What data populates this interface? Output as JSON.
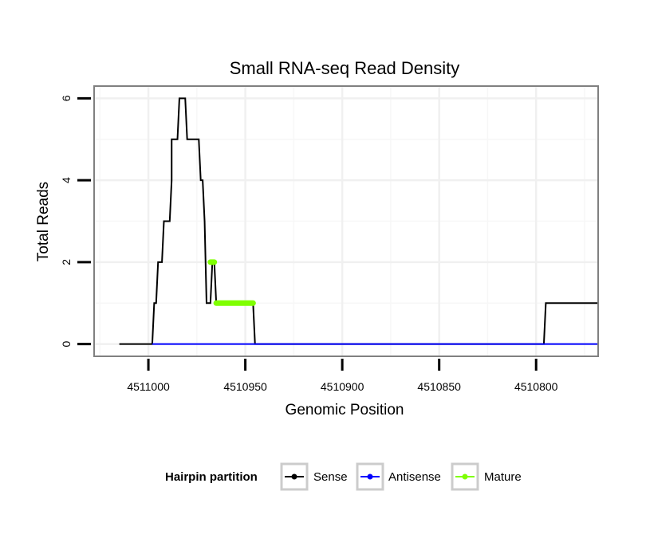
{
  "chart_data": {
    "type": "line",
    "title": "Small RNA-seq Read Density",
    "xlabel": "Genomic Position",
    "ylabel": "Total Reads",
    "x_reversed": true,
    "xlim": [
      4511028,
      4510768
    ],
    "ylim": [
      -0.3,
      6.3
    ],
    "x_ticks": [
      4511000,
      4510950,
      4510900,
      4510850,
      4510800
    ],
    "x_tick_labels": [
      "4511000",
      "4510950",
      "4510900",
      "4510850",
      "4510800"
    ],
    "y_ticks": [
      0,
      2,
      4,
      6
    ],
    "y_tick_labels": [
      "0",
      "2",
      "4",
      "6"
    ],
    "grid": true,
    "legend": {
      "position": "bottom",
      "title": "Hairpin partition",
      "entries": [
        {
          "name": "Sense",
          "color": "#000000"
        },
        {
          "name": "Antisense",
          "color": "#0000ff"
        },
        {
          "name": "Mature",
          "color": "#7fff00"
        }
      ]
    },
    "series": [
      {
        "name": "Sense",
        "color": "#000000",
        "points": [
          [
            4511015,
            0
          ],
          [
            4510998,
            0
          ],
          [
            4510997,
            1
          ],
          [
            4510996,
            1
          ],
          [
            4510995,
            2
          ],
          [
            4510993,
            2
          ],
          [
            4510992,
            3
          ],
          [
            4510989,
            3
          ],
          [
            4510988,
            4
          ],
          [
            4510988,
            5
          ],
          [
            4510985,
            5
          ],
          [
            4510984,
            6
          ],
          [
            4510981,
            6
          ],
          [
            4510980,
            5
          ],
          [
            4510974,
            5
          ],
          [
            4510973,
            4
          ],
          [
            4510972,
            4
          ],
          [
            4510971,
            3
          ],
          [
            4510970,
            1
          ],
          [
            4510968,
            1
          ],
          [
            4510967,
            2
          ],
          [
            4510966,
            2
          ],
          [
            4510965,
            1
          ],
          [
            4510946,
            1
          ],
          [
            4510945,
            0
          ],
          [
            4510796,
            0
          ],
          [
            4510795,
            1
          ],
          [
            4510768,
            1
          ]
        ]
      },
      {
        "name": "Antisense",
        "color": "#0000ff",
        "points": [
          [
            4510998,
            0
          ],
          [
            4510768,
            0
          ]
        ]
      },
      {
        "name": "Mature",
        "color": "#7fff00",
        "segments": [
          {
            "x_start": 4510968,
            "x_end": 4510966,
            "value": 2
          },
          {
            "x_start": 4510965,
            "x_end": 4510946,
            "value": 1
          }
        ]
      }
    ]
  }
}
